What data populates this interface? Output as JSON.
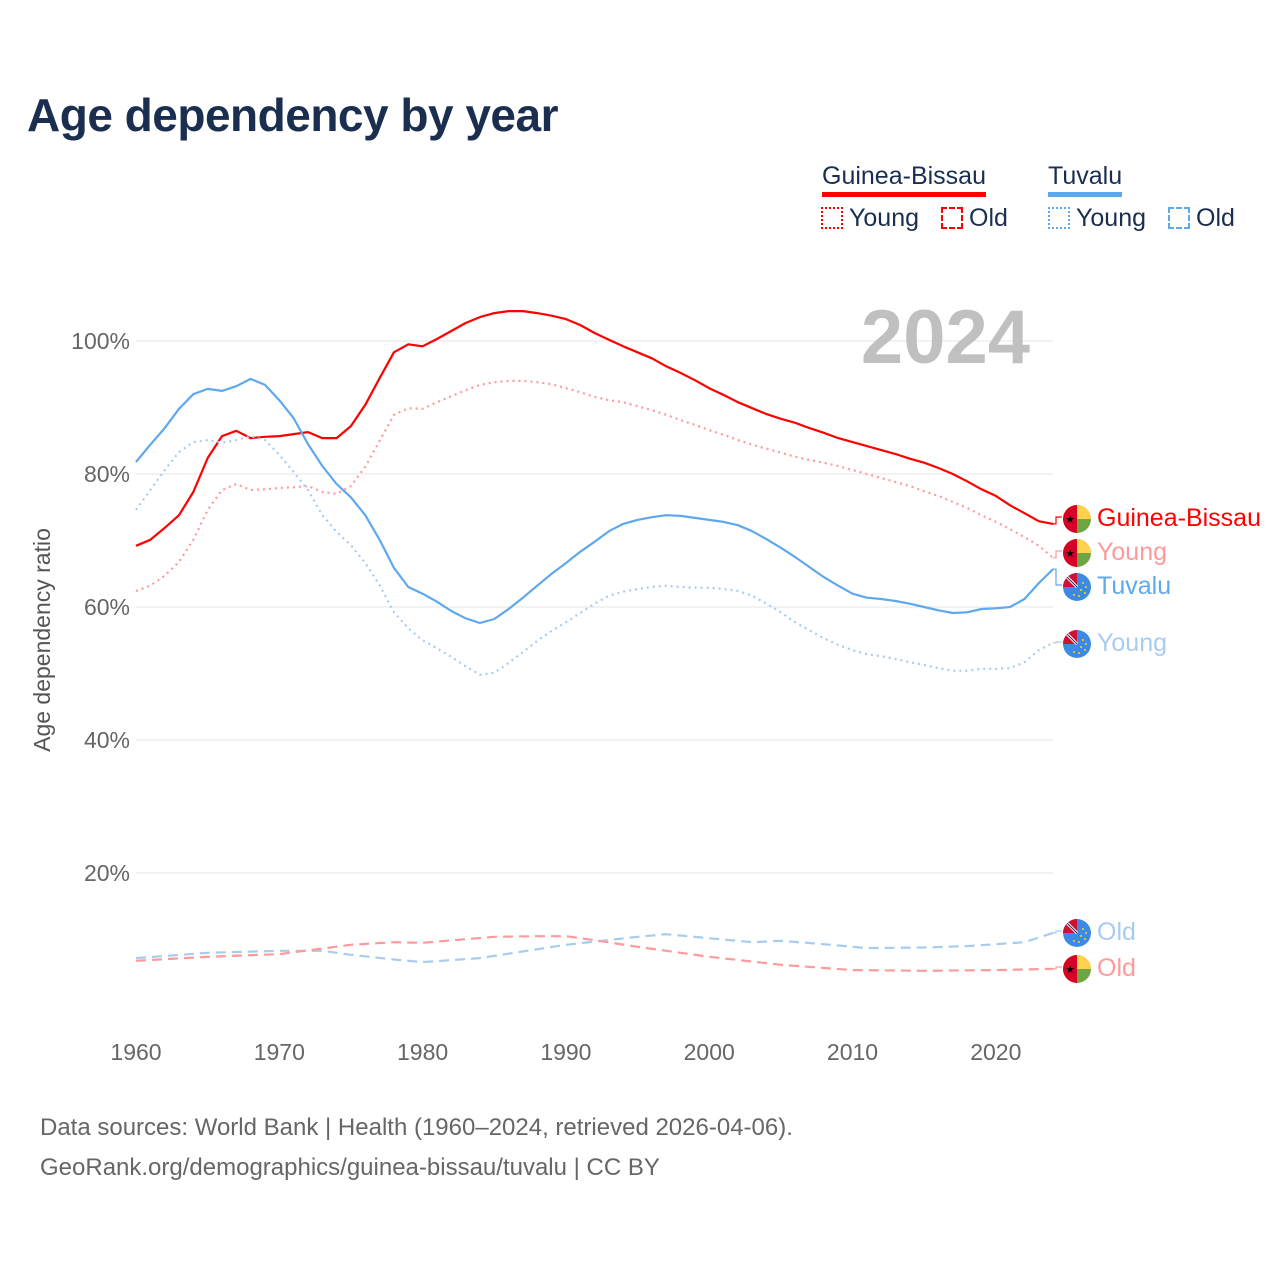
{
  "title": "Age dependency by year",
  "legend": {
    "countries": [
      {
        "name": "Guinea-Bissau",
        "color": "#ff0000",
        "light": "#ff9a9a",
        "young": "Young",
        "old": "Old"
      },
      {
        "name": "Tuvalu",
        "color": "#5ea8ee",
        "light": "#a8ccf0",
        "young": "Young",
        "old": "Old"
      }
    ]
  },
  "year_label": "2024",
  "source": {
    "line1": "Data sources: World Bank | Health (1960–2024, retrieved 2026-04-06).",
    "line2": "GeoRank.org/demographics/guinea-bissau/tuvalu | CC BY"
  },
  "chart_data": {
    "type": "line",
    "title": "Age dependency by year",
    "xlabel": "",
    "ylabel": "Age dependency ratio",
    "xlim": [
      1960,
      2024
    ],
    "ylim": [
      0,
      110
    ],
    "x_ticks": [
      "1960",
      "1970",
      "1980",
      "1990",
      "2000",
      "2010",
      "2020"
    ],
    "y_ticks": [
      "20%",
      "40%",
      "60%",
      "80%",
      "100%"
    ],
    "grid": true,
    "end_labels": [
      "Guinea-Bissau",
      "Young",
      "Tuvalu",
      "Young",
      "Old",
      "Old"
    ],
    "series": [
      {
        "name": "Guinea-Bissau",
        "country": "Guinea-Bissau",
        "kind": "total",
        "style": "solid",
        "color": "#ff0000",
        "x_start": 1960,
        "values": [
          69.2,
          70.1,
          71.9,
          73.8,
          77.3,
          82.4,
          85.7,
          86.5,
          85.4,
          85.6,
          85.7,
          86.0,
          86.3,
          85.4,
          85.4,
          87.2,
          90.4,
          94.4,
          98.3,
          99.5,
          99.2,
          100.3,
          101.5,
          102.7,
          103.6,
          104.2,
          104.5,
          104.5,
          104.2,
          103.8,
          103.3,
          102.4,
          101.2,
          100.2,
          99.2,
          98.3,
          97.4,
          96.2,
          95.2,
          94.1,
          92.9,
          91.9,
          90.8,
          89.9,
          89.0,
          88.3,
          87.7,
          86.9,
          86.2,
          85.4,
          84.8,
          84.2,
          83.6,
          83.0,
          82.3,
          81.7,
          80.9,
          80.0,
          78.9,
          77.7,
          76.7,
          75.3,
          74.1,
          72.9,
          72.5
        ]
      },
      {
        "name": "Young",
        "country": "Guinea-Bissau",
        "kind": "young",
        "style": "dotted",
        "color": "#ff9a9a",
        "x_start": 1960,
        "values": [
          62.4,
          63.2,
          64.7,
          66.8,
          70.1,
          74.6,
          77.6,
          78.5,
          77.6,
          77.7,
          77.9,
          78.0,
          78.2,
          77.3,
          77.0,
          78.2,
          81.1,
          85.0,
          88.9,
          89.9,
          89.8,
          90.8,
          91.7,
          92.6,
          93.4,
          93.8,
          94.0,
          94.0,
          93.8,
          93.5,
          92.9,
          92.3,
          91.6,
          91.1,
          90.8,
          90.2,
          89.6,
          88.9,
          88.1,
          87.4,
          86.6,
          85.9,
          85.1,
          84.4,
          83.8,
          83.2,
          82.6,
          82.1,
          81.7,
          81.2,
          80.6,
          80.0,
          79.4,
          78.8,
          78.2,
          77.4,
          76.7,
          75.8,
          74.9,
          73.8,
          72.8,
          71.7,
          70.5,
          69.2,
          67.4
        ]
      },
      {
        "name": "Tuvalu",
        "country": "Tuvalu",
        "kind": "total",
        "style": "solid",
        "color": "#5ea8ee",
        "x_start": 1960,
        "values": [
          81.8,
          84.4,
          86.9,
          89.8,
          92.0,
          92.8,
          92.5,
          93.2,
          94.3,
          93.4,
          91.1,
          88.4,
          84.5,
          81.2,
          78.5,
          76.5,
          73.8,
          70.1,
          65.9,
          63.0,
          62.0,
          60.8,
          59.4,
          58.3,
          57.6,
          58.2,
          59.7,
          61.4,
          63.2,
          65.0,
          66.6,
          68.3,
          69.8,
          71.4,
          72.5,
          73.1,
          73.5,
          73.8,
          73.7,
          73.4,
          73.1,
          72.8,
          72.3,
          71.4,
          70.2,
          68.9,
          67.5,
          66.0,
          64.5,
          63.2,
          62.0,
          61.4,
          61.2,
          60.9,
          60.5,
          60.0,
          59.5,
          59.1,
          59.2,
          59.7,
          59.8,
          60.0,
          61.2,
          63.6,
          65.7
        ]
      },
      {
        "name": "Young",
        "country": "Tuvalu",
        "kind": "young",
        "style": "dotted",
        "color": "#a8ccf0",
        "x_start": 1960,
        "values": [
          74.6,
          77.6,
          80.6,
          83.3,
          84.8,
          85.1,
          84.7,
          85.1,
          85.7,
          85.1,
          82.9,
          80.3,
          77.6,
          73.8,
          71.3,
          69.3,
          66.6,
          63.3,
          59.2,
          56.8,
          55.0,
          53.8,
          52.5,
          51.1,
          49.8,
          50.1,
          51.6,
          53.2,
          54.9,
          56.4,
          57.7,
          59.1,
          60.5,
          61.7,
          62.3,
          62.7,
          63.0,
          63.2,
          63.0,
          62.9,
          62.9,
          62.7,
          62.4,
          61.7,
          60.5,
          59.2,
          57.7,
          56.5,
          55.3,
          54.3,
          53.5,
          52.9,
          52.6,
          52.2,
          51.7,
          51.3,
          50.8,
          50.4,
          50.4,
          50.7,
          50.7,
          50.8,
          51.7,
          53.5,
          54.6
        ]
      },
      {
        "name": "Old",
        "country": "Tuvalu",
        "kind": "old",
        "style": "dashed",
        "color": "#a8ccf0",
        "x": [
          1960,
          1965,
          1970,
          1973,
          1975,
          1978,
          1980,
          1984,
          1990,
          1995,
          1997,
          2000,
          2003,
          2005,
          2008,
          2011,
          2015,
          2018,
          2020,
          2022,
          2024
        ],
        "values": [
          7.2,
          8.0,
          8.3,
          8.3,
          7.7,
          7.0,
          6.6,
          7.2,
          9.2,
          10.4,
          10.8,
          10.2,
          9.6,
          9.8,
          9.3,
          8.7,
          8.8,
          9.0,
          9.3,
          9.6,
          11.0
        ]
      },
      {
        "name": "Old",
        "country": "Guinea-Bissau",
        "kind": "old",
        "style": "dashed",
        "color": "#ff9a9a",
        "x": [
          1960,
          1965,
          1970,
          1975,
          1978,
          1980,
          1985,
          1988,
          1990,
          1992,
          1995,
          2000,
          2005,
          2010,
          2015,
          2020,
          2024
        ],
        "values": [
          6.8,
          7.4,
          7.8,
          9.2,
          9.6,
          9.5,
          10.4,
          10.5,
          10.5,
          9.9,
          8.9,
          7.4,
          6.2,
          5.4,
          5.3,
          5.4,
          5.6
        ]
      }
    ]
  }
}
